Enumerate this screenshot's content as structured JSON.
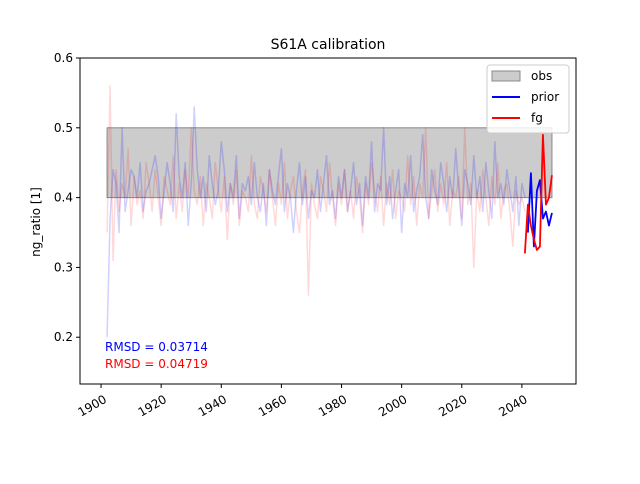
{
  "chart_data": {
    "type": "line",
    "title": "S61A calibration",
    "xlabel": "",
    "ylabel": "ng_ratio [1]",
    "xlim": [
      1893,
      2058
    ],
    "ylim": [
      0.133,
      0.6
    ],
    "xticks": [
      1900,
      1920,
      1940,
      1960,
      1980,
      2000,
      2020,
      2040
    ],
    "yticks": [
      0.2,
      0.3,
      0.4,
      0.5,
      0.6
    ],
    "legend": {
      "position": "top-right",
      "entries": [
        "obs",
        "prior",
        "fg"
      ]
    },
    "obs_band": {
      "name": "obs",
      "x": [
        1902,
        2050
      ],
      "y": [
        0.4,
        0.5
      ],
      "color": "#cccccc"
    },
    "series": [
      {
        "name": "prior",
        "color": "#0000ff",
        "x": [
          2042,
          2043,
          2044,
          2045,
          2046,
          2047,
          2048,
          2049,
          2050
        ],
        "values": [
          0.35,
          0.435,
          0.33,
          0.41,
          0.425,
          0.37,
          0.38,
          0.36,
          0.378
        ]
      },
      {
        "name": "fg",
        "color": "#ff0000",
        "x": [
          2041,
          2042,
          2043,
          2044,
          2045,
          2046,
          2047,
          2048,
          2049,
          2050
        ],
        "values": [
          0.32,
          0.39,
          0.36,
          0.34,
          0.325,
          0.33,
          0.49,
          0.39,
          0.4,
          0.432
        ]
      }
    ],
    "background_series": [
      {
        "color": "#0000ff",
        "opacity": 0.18,
        "x_start": 1902,
        "values": [
          0.2,
          0.37,
          0.44,
          0.42,
          0.35,
          0.5,
          0.38,
          0.41,
          0.44,
          0.43,
          0.4,
          0.45,
          0.38,
          0.41,
          0.42,
          0.44,
          0.46,
          0.43,
          0.37,
          0.41,
          0.45,
          0.42,
          0.38,
          0.52,
          0.43,
          0.4,
          0.45,
          0.36,
          0.42,
          0.53,
          0.44,
          0.4,
          0.43,
          0.38,
          0.46,
          0.42,
          0.39,
          0.41,
          0.48,
          0.44,
          0.38,
          0.42,
          0.4,
          0.46,
          0.37,
          0.42,
          0.41,
          0.43,
          0.39,
          0.45,
          0.4,
          0.38,
          0.42,
          0.36,
          0.44,
          0.41,
          0.39,
          0.43,
          0.47,
          0.38,
          0.42,
          0.4,
          0.35,
          0.41,
          0.45,
          0.39,
          0.43,
          0.37,
          0.41,
          0.4,
          0.44,
          0.38,
          0.42,
          0.46,
          0.39,
          0.41,
          0.37,
          0.43,
          0.4,
          0.44,
          0.38,
          0.41,
          0.45,
          0.39,
          0.42,
          0.36,
          0.43,
          0.4,
          0.48,
          0.38,
          0.42,
          0.41,
          0.5,
          0.39,
          0.43,
          0.37,
          0.41,
          0.44,
          0.35,
          0.42,
          0.4,
          0.46,
          0.38,
          0.41,
          0.43,
          0.49,
          0.4,
          0.37,
          0.44,
          0.41,
          0.39,
          0.45,
          0.42,
          0.38,
          0.43,
          0.4,
          0.47,
          0.41,
          0.36,
          0.44,
          0.42,
          0.39,
          0.46,
          0.4,
          0.43,
          0.38,
          0.45,
          0.41,
          0.37,
          0.48,
          0.4,
          0.42,
          0.39,
          0.44,
          0.41,
          0.38,
          0.43,
          0.36,
          0.42,
          0.4
        ]
      },
      {
        "color": "#ff0000",
        "opacity": 0.15,
        "x_start": 1902,
        "values": [
          0.35,
          0.56,
          0.31,
          0.44,
          0.38,
          0.42,
          0.4,
          0.47,
          0.36,
          0.43,
          0.39,
          0.41,
          0.37,
          0.45,
          0.42,
          0.38,
          0.44,
          0.4,
          0.36,
          0.43,
          0.41,
          0.39,
          0.46,
          0.37,
          0.42,
          0.38,
          0.44,
          0.4,
          0.5,
          0.41,
          0.39,
          0.43,
          0.36,
          0.42,
          0.4,
          0.37,
          0.45,
          0.41,
          0.38,
          0.43,
          0.34,
          0.42,
          0.39,
          0.44,
          0.36,
          0.41,
          0.4,
          0.38,
          0.46,
          0.39,
          0.37,
          0.43,
          0.41,
          0.38,
          0.44,
          0.4,
          0.36,
          0.42,
          0.39,
          0.45,
          0.37,
          0.41,
          0.43,
          0.38,
          0.35,
          0.41,
          0.44,
          0.26,
          0.42,
          0.39,
          0.37,
          0.43,
          0.41,
          0.38,
          0.45,
          0.4,
          0.36,
          0.42,
          0.39,
          0.44,
          0.38,
          0.41,
          0.37,
          0.43,
          0.4,
          0.35,
          0.42,
          0.39,
          0.45,
          0.41,
          0.38,
          0.43,
          0.36,
          0.42,
          0.39,
          0.44,
          0.37,
          0.41,
          0.4,
          0.38,
          0.46,
          0.39,
          0.43,
          0.36,
          0.42,
          0.4,
          0.5,
          0.37,
          0.41,
          0.44,
          0.38,
          0.42,
          0.39,
          0.45,
          0.36,
          0.41,
          0.4,
          0.43,
          0.37,
          0.5,
          0.39,
          0.42,
          0.3,
          0.41,
          0.38,
          0.44,
          0.4,
          0.36,
          0.43,
          0.39,
          0.45,
          0.37,
          0.41,
          0.42,
          0.38,
          0.33,
          0.41,
          0.39,
          0.4,
          0.38
        ]
      }
    ],
    "annotations": [
      {
        "text": "RMSD = 0.03714",
        "color": "#0000ff"
      },
      {
        "text": "RMSD = 0.04719",
        "color": "#ff0000"
      }
    ]
  }
}
